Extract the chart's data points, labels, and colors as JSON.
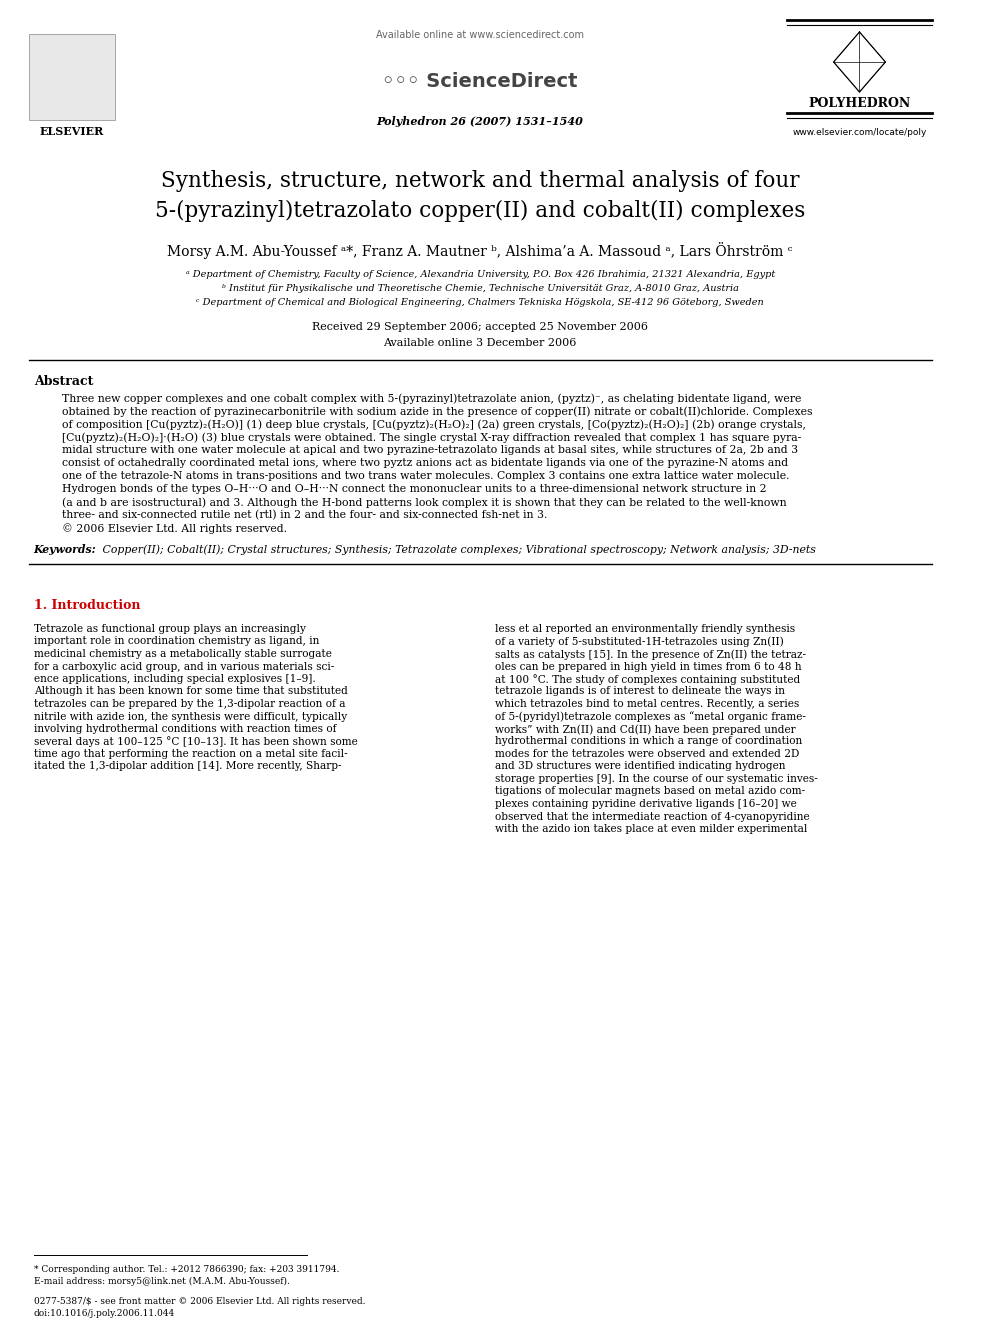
{
  "page_background": "#ffffff",
  "header": {
    "available_online": "Available online at www.sciencedirect.com",
    "journal_name": "Polyhedron 26 (2007) 1531–1540",
    "journal_logo": "POLYHEDRON",
    "elsevier": "ELSEVIER",
    "website": "www.elsevier.com/locate/poly"
  },
  "title_line1": "Synthesis, structure, network and thermal analysis of four",
  "title_line2": "5-(pyrazinyl)tetrazolato copper(II) and cobalt(II) complexes",
  "authors": "Morsy A.M. Abu-Youssef ᵃ*, Franz A. Mautner ᵇ, Alshima’a A. Massoud ᵃ, Lars Öhrström ᶜ",
  "affil_a": "ᵃ Department of Chemistry, Faculty of Science, Alexandria University, P.O. Box 426 Ibrahimia, 21321 Alexandria, Egypt",
  "affil_b": "ᵇ Institut für Physikalische und Theoretische Chemie, Technische Universität Graz, A-8010 Graz, Austria",
  "affil_c": "ᶜ Department of Chemical and Biological Engineering, Chalmers Tekniska Högskola, SE-412 96 Göteborg, Sweden",
  "received": "Received 29 September 2006; accepted 25 November 2006",
  "available_online_date": "Available online 3 December 2006",
  "abstract_title": "Abstract",
  "abstract_text": "Three new copper complexes and one cobalt complex with 5-(pyrazinyl)tetrazolate anion, (pyztz)⁻, as chelating bidentate ligand, were\nobtained by the reaction of pyrazinecarbonitrile with sodium azide in the presence of copper(II) nitrate or cobalt(II)chloride. Complexes\nof composition [Cu(pyztz)₂(H₂O)] (1) deep blue crystals, [Cu(pyztz)₂(H₂O)₂] (2a) green crystals, [Co(pyztz)₂(H₂O)₂] (2b) orange crystals,\n[Cu(pyztz)₂(H₂O)₂]·(H₂O) (3) blue crystals were obtained. The single crystal X-ray diffraction revealed that complex 1 has square pyra-\nmidal structure with one water molecule at apical and two pyrazine-tetrazolato ligands at basal sites, while structures of 2a, 2b and 3\nconsist of octahedrally coordinated metal ions, where two pyztz anions act as bidentate ligands via one of the pyrazine-N atoms and\none of the tetrazole-N atoms in trans-positions and two trans water molecules. Complex 3 contains one extra lattice water molecule.\nHydrogen bonds of the types O–H···O and O–H···N connect the mononuclear units to a three-dimensional network structure in 2\n(a and b are isostructural) and 3. Although the H-bond patterns look complex it is shown that they can be related to the well-known\nthree- and six-connected rutile net (rtl) in 2 and the four- and six-connected fsh-net in 3.\n© 2006 Elsevier Ltd. All rights reserved.",
  "keywords_label": "Keywords:",
  "keywords_text": " Copper(II); Cobalt(II); Crystal structures; Synthesis; Tetrazolate complexes; Vibrational spectroscopy; Network analysis; 3D-nets",
  "section1_title": "1. Introduction",
  "intro_left": "Tetrazole as functional group plays an increasingly\nimportant role in coordination chemistry as ligand, in\nmedicinal chemistry as a metabolically stable surrogate\nfor a carboxylic acid group, and in various materials sci-\nence applications, including special explosives [1–9].\nAlthough it has been known for some time that substituted\ntetrazoles can be prepared by the 1,3-dipolar reaction of a\nnitrile with azide ion, the synthesis were difficult, typically\ninvolving hydrothermal conditions with reaction times of\nseveral days at 100–125 °C [10–13]. It has been shown some\ntime ago that performing the reaction on a metal site facil-\nitated the 1,3-dipolar addition [14]. More recently, Sharp-",
  "intro_right": "less et al reported an environmentally friendly synthesis\nof a variety of 5-substituted-1H-tetrazoles using Zn(II)\nsalts as catalysts [15]. In the presence of Zn(II) the tetraz-\noles can be prepared in high yield in times from 6 to 48 h\nat 100 °C. The study of complexes containing substituted\ntetrazole ligands is of interest to delineate the ways in\nwhich tetrazoles bind to metal centres. Recently, a series\nof 5-(pyridyl)tetrazole complexes as “metal organic frame-\nworks” with Zn(II) and Cd(II) have been prepared under\nhydrothermal conditions in which a range of coordination\nmodes for the tetrazoles were observed and extended 2D\nand 3D structures were identified indicating hydrogen\nstorage properties [9]. In the course of our systematic inves-\ntigations of molecular magnets based on metal azido com-\nplexes containing pyridine derivative ligands [16–20] we\nobserved that the intermediate reaction of 4-cyanopyridine\nwith the azido ion takes place at even milder experimental",
  "footnote": "* Corresponding author. Tel.: +2012 7866390; fax: +203 3911794.\nE-mail address: morsy5@link.net (M.A.M. Abu-Youssef).",
  "copyright_footer": "0277-5387/$ - see front matter © 2006 Elsevier Ltd. All rights reserved.\ndoi:10.1016/j.poly.2006.11.044"
}
